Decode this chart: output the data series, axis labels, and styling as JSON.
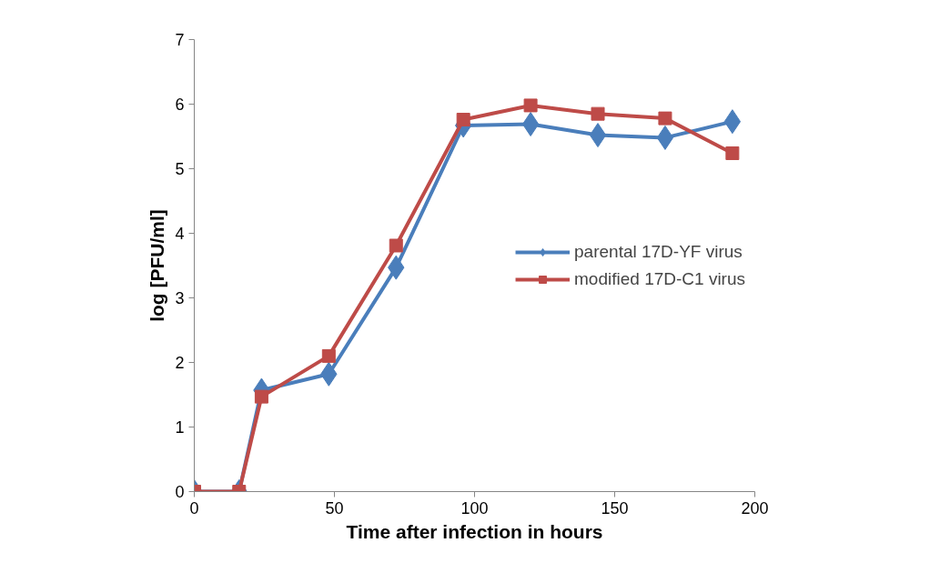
{
  "chart_data": {
    "type": "line",
    "xlabel": "Time after infection in hours",
    "ylabel": "log [PFU/ml]",
    "x": [
      0,
      16,
      24,
      48,
      72,
      96,
      120,
      144,
      168,
      192
    ],
    "series": [
      {
        "name": "parental 17D-YF virus",
        "color": "#4a7ebb",
        "marker": "diamond",
        "values": [
          0,
          0,
          1.57,
          1.82,
          3.47,
          5.67,
          5.69,
          5.52,
          5.48,
          5.73
        ]
      },
      {
        "name": "modified 17D-C1 virus",
        "color": "#be4b48",
        "marker": "square",
        "values": [
          0,
          0,
          1.47,
          2.1,
          3.81,
          5.76,
          5.98,
          5.85,
          5.78,
          5.24
        ]
      }
    ],
    "xlim": [
      0,
      200
    ],
    "xticks": [
      0,
      50,
      100,
      150,
      200
    ],
    "ylim": [
      0,
      7
    ],
    "yticks": [
      0,
      1,
      2,
      3,
      4,
      5,
      6,
      7
    ],
    "grid": false,
    "legend": "right",
    "line_style": "solid"
  }
}
